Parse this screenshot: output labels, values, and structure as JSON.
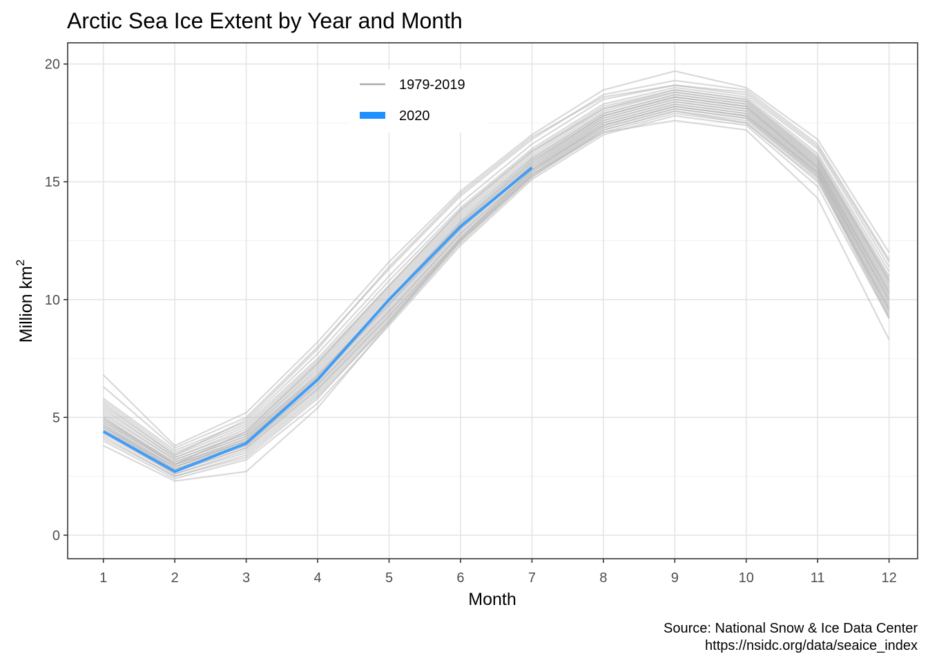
{
  "chart_data": {
    "type": "line",
    "title": "Arctic Sea Ice Extent by Year and Month",
    "xlabel": "Month",
    "ylabel": "Million km",
    "ylabel_superscript": "2",
    "x": [
      1,
      2,
      3,
      4,
      5,
      6,
      7,
      8,
      9,
      10,
      11,
      12
    ],
    "xlim": [
      0.5,
      12.4
    ],
    "ylim": [
      -1,
      20.9
    ],
    "yticks": [
      0,
      5,
      10,
      15,
      20
    ],
    "grid": true,
    "legend_position": "top-center",
    "legend": [
      {
        "label": "1979-2019",
        "color": "#aaaaaa"
      },
      {
        "label": "2020",
        "color": "#1e90ff"
      }
    ],
    "caption": [
      "Source: National Snow & Ice Data Center",
      "https://nsidc.org/data/seaice_index"
    ],
    "historical_color": "#b3b3b3",
    "highlight_color": "#1e90ff",
    "series": [
      {
        "values": [
          6.8,
          3.8,
          5.2,
          8.2,
          11.6,
          14.6,
          17.0,
          18.9,
          19.7,
          19.0,
          16.8,
          12.0
        ]
      },
      {
        "values": [
          6.3,
          3.7,
          5.0,
          8.0,
          11.3,
          14.4,
          16.8,
          18.7,
          19.3,
          18.9,
          16.6,
          11.7
        ]
      },
      {
        "values": [
          5.8,
          3.6,
          4.8,
          7.7,
          11.0,
          14.1,
          16.6,
          18.5,
          19.1,
          18.7,
          16.4,
          11.4
        ]
      },
      {
        "values": [
          5.7,
          3.5,
          4.7,
          7.5,
          10.8,
          13.9,
          16.4,
          18.3,
          19.0,
          18.6,
          16.2,
          11.2
        ]
      },
      {
        "values": [
          5.5,
          3.4,
          4.6,
          7.4,
          10.6,
          13.8,
          16.3,
          18.2,
          18.9,
          18.5,
          16.1,
          11.0
        ]
      },
      {
        "values": [
          5.4,
          3.3,
          4.5,
          7.3,
          10.5,
          13.7,
          16.2,
          18.1,
          18.8,
          18.4,
          16.0,
          10.9
        ]
      },
      {
        "values": [
          5.3,
          3.3,
          4.4,
          7.2,
          10.4,
          13.6,
          16.1,
          18.0,
          18.8,
          18.4,
          15.9,
          10.8
        ]
      },
      {
        "values": [
          5.2,
          3.2,
          4.3,
          7.1,
          10.3,
          13.5,
          16.0,
          17.9,
          18.7,
          18.3,
          15.9,
          10.7
        ]
      },
      {
        "values": [
          5.1,
          3.2,
          4.3,
          7.0,
          10.2,
          13.4,
          16.0,
          17.9,
          18.7,
          18.3,
          15.8,
          10.6
        ]
      },
      {
        "values": [
          5.0,
          3.1,
          4.2,
          6.9,
          10.1,
          13.3,
          15.9,
          17.8,
          18.6,
          18.2,
          15.8,
          10.5
        ]
      },
      {
        "values": [
          4.9,
          3.1,
          4.2,
          6.8,
          10.0,
          13.2,
          15.8,
          17.8,
          18.6,
          18.2,
          15.7,
          10.4
        ]
      },
      {
        "values": [
          4.9,
          3.0,
          4.1,
          6.8,
          9.9,
          13.2,
          15.8,
          17.7,
          18.5,
          18.1,
          15.7,
          10.3
        ]
      },
      {
        "values": [
          4.8,
          3.0,
          4.1,
          6.7,
          9.8,
          13.1,
          15.7,
          17.7,
          18.5,
          18.1,
          15.6,
          10.2
        ]
      },
      {
        "values": [
          4.8,
          3.0,
          4.0,
          6.6,
          9.8,
          13.0,
          15.7,
          17.6,
          18.4,
          18.0,
          15.6,
          10.1
        ]
      },
      {
        "values": [
          4.7,
          2.9,
          4.0,
          6.6,
          9.7,
          13.0,
          15.6,
          17.6,
          18.4,
          18.0,
          15.5,
          10.0
        ]
      },
      {
        "values": [
          4.7,
          2.9,
          3.9,
          6.5,
          9.6,
          12.9,
          15.6,
          17.5,
          18.3,
          17.9,
          15.5,
          9.9
        ]
      },
      {
        "values": [
          4.6,
          2.8,
          3.9,
          6.4,
          9.5,
          12.8,
          15.5,
          17.5,
          18.3,
          17.9,
          15.4,
          9.8
        ]
      },
      {
        "values": [
          4.6,
          2.8,
          3.8,
          6.4,
          9.5,
          12.8,
          15.5,
          17.4,
          18.2,
          17.8,
          15.4,
          9.7
        ]
      },
      {
        "values": [
          4.5,
          2.8,
          3.8,
          6.3,
          9.4,
          12.7,
          15.4,
          17.4,
          18.2,
          17.8,
          15.3,
          9.6
        ]
      },
      {
        "values": [
          4.5,
          2.7,
          3.7,
          6.2,
          9.3,
          12.6,
          15.4,
          17.3,
          18.1,
          17.7,
          15.3,
          9.5
        ]
      },
      {
        "values": [
          4.4,
          2.7,
          3.7,
          6.2,
          9.3,
          12.6,
          15.3,
          17.3,
          18.1,
          17.7,
          15.2,
          9.4
        ]
      },
      {
        "values": [
          4.4,
          2.6,
          3.6,
          6.1,
          9.2,
          12.5,
          15.3,
          17.2,
          18.0,
          17.6,
          15.2,
          9.3
        ]
      },
      {
        "values": [
          4.3,
          2.6,
          3.5,
          6.0,
          9.1,
          12.5,
          15.2,
          17.2,
          18.0,
          17.5,
          15.1,
          9.2
        ]
      },
      {
        "values": [
          4.2,
          2.5,
          3.4,
          5.9,
          9.0,
          12.4,
          15.2,
          17.1,
          17.9,
          17.5,
          15.0,
          9.6
        ]
      },
      {
        "values": [
          4.0,
          2.4,
          3.2,
          5.6,
          8.9,
          12.3,
          15.1,
          17.0,
          17.8,
          17.4,
          14.8,
          9.2
        ]
      },
      {
        "values": [
          3.8,
          2.3,
          2.7,
          5.4,
          9.0,
          12.5,
          15.3,
          17.1,
          17.6,
          17.2,
          14.3,
          8.3
        ]
      },
      {
        "values": [
          5.6,
          3.4,
          4.9,
          7.9,
          11.4,
          14.5,
          16.9,
          18.6,
          19.1,
          18.8,
          16.5,
          11.6
        ]
      },
      {
        "values": [
          4.1,
          2.5,
          3.3,
          5.8,
          9.1,
          12.6,
          15.5,
          17.4,
          18.2,
          17.8,
          15.4,
          10.0
        ]
      },
      {
        "values": [
          5.0,
          3.0,
          4.4,
          7.3,
          10.6,
          13.8,
          16.3,
          18.1,
          18.9,
          18.5,
          16.0,
          10.8
        ]
      },
      {
        "values": [
          4.6,
          2.9,
          4.0,
          6.7,
          10.0,
          13.3,
          15.9,
          17.8,
          18.6,
          18.2,
          15.6,
          10.3
        ]
      }
    ],
    "highlight_series": {
      "name": "2020",
      "x": [
        1,
        2,
        3,
        4,
        5,
        6,
        7
      ],
      "values": [
        4.4,
        2.7,
        3.9,
        6.6,
        10.0,
        13.1,
        15.6
      ]
    }
  }
}
